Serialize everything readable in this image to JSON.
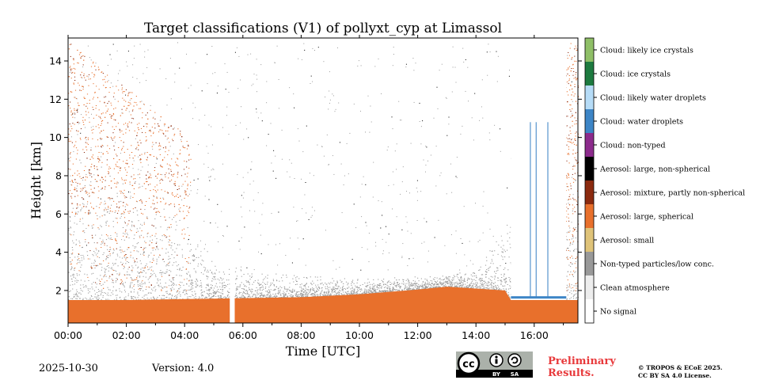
{
  "chart_data": {
    "type": "heatmap",
    "title": "Target classifications (V1) of pollyxt_cyp at Limassol",
    "xlabel": "Time [UTC]",
    "ylabel": "Height [km]",
    "xlim": [
      0,
      17.5
    ],
    "ylim": [
      0.3,
      15.2
    ],
    "x_ticks": [
      0,
      2,
      4,
      6,
      8,
      10,
      12,
      14,
      16
    ],
    "x_tick_labels": [
      "00:00",
      "02:00",
      "04:00",
      "06:00",
      "08:00",
      "10:00",
      "12:00",
      "14:00",
      "16:00"
    ],
    "y_ticks": [
      2,
      4,
      6,
      8,
      10,
      12,
      14
    ],
    "y_tick_labels": [
      "2",
      "4",
      "6",
      "8",
      "10",
      "12",
      "14"
    ],
    "legend": [
      {
        "label": "Cloud: likely ice crystals",
        "color": "#8fbf67"
      },
      {
        "label": "Cloud: ice crystals",
        "color": "#1d7a3f"
      },
      {
        "label": "Cloud: likely water droplets",
        "color": "#b6dcf7"
      },
      {
        "label": "Cloud: water droplets",
        "color": "#3d85c6"
      },
      {
        "label": "Cloud: non-typed",
        "color": "#8c2b8c"
      },
      {
        "label": "Aerosol: large, non-spherical",
        "color": "#000000"
      },
      {
        "label": "Aerosol: mixture, partly non-spherical",
        "color": "#8b2a0f"
      },
      {
        "label": "Aerosol: large, spherical",
        "color": "#e8702c"
      },
      {
        "label": "Aerosol: small",
        "color": "#dfc379"
      },
      {
        "label": "Non-typed particles/low conc.",
        "color": "#999999"
      },
      {
        "label": "Clean atmosphere",
        "color": "#ededed"
      },
      {
        "label": "No signal",
        "color": "#ffffff"
      }
    ],
    "layers": {
      "large_spherical_aerosol_top_km": {
        "t": [
          0,
          2,
          4,
          6,
          8,
          10,
          12,
          13,
          14,
          15,
          15.2,
          17.5
        ],
        "h": [
          1.5,
          1.5,
          1.55,
          1.6,
          1.65,
          1.8,
          2.05,
          2.2,
          2.1,
          2.0,
          1.5,
          1.5
        ]
      },
      "non_typed_top_km": {
        "t": [
          0,
          3,
          3.8,
          4.5,
          6,
          10,
          14,
          15,
          16.5,
          17.5
        ],
        "h": [
          9,
          8,
          6.5,
          4.5,
          3,
          2.6,
          3.0,
          5.5,
          7,
          9
        ]
      },
      "no_signal_gaps_hours": [
        [
          5.55,
          5.72
        ],
        [
          15.2,
          17.1
        ]
      ],
      "cloud_columns_hours": [
        15.85,
        16.05,
        16.45
      ]
    },
    "colors": {
      "background": "#ffffff",
      "aerosol_spherical": "#e8702c",
      "non_typed": "#999999",
      "mixture": "#8b2a0f"
    }
  },
  "footer": {
    "date": "2025-10-30",
    "version": "Version: 4.0",
    "preliminary": [
      "Preliminary",
      "Results."
    ],
    "copyright": [
      "© TROPOS & ECoE 2025.",
      "CC BY SA 4.0 License."
    ],
    "license_badge": {
      "cc": "cc",
      "by": "BY",
      "sa": "SA"
    }
  }
}
